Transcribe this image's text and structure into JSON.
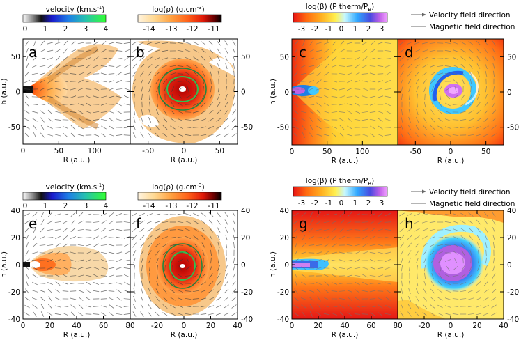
{
  "chart_data": [
    {
      "type": "heatmap",
      "panel_label": "a",
      "row": "top",
      "kind": "density",
      "xlabel": "R (a.u.)",
      "ylabel": "h (a.u.)",
      "xlim": [
        0,
        150
      ],
      "ylim": [
        -75,
        75
      ],
      "x_ticks": [
        "0",
        "50",
        "100"
      ],
      "y_ticks": [
        "50",
        "0",
        "-50"
      ]
    },
    {
      "type": "heatmap",
      "panel_label": "b",
      "row": "top",
      "kind": "density",
      "xlabel": "R (a.u.)",
      "ylabel": "",
      "xlim": [
        -75,
        75
      ],
      "ylim": [
        -75,
        75
      ],
      "x_ticks": [
        "-50",
        "0",
        "50"
      ],
      "y_ticks": [
        "50",
        "0",
        "-50"
      ]
    },
    {
      "type": "heatmap",
      "panel_label": "c",
      "row": "top",
      "kind": "beta",
      "xlabel": "R (a.u.)",
      "ylabel": "h (a.u.)",
      "xlim": [
        0,
        150
      ],
      "ylim": [
        -75,
        75
      ],
      "x_ticks": [
        "0",
        "50",
        "100"
      ],
      "y_ticks": [
        "50",
        "0",
        "-50"
      ]
    },
    {
      "type": "heatmap",
      "panel_label": "d",
      "row": "top",
      "kind": "beta",
      "xlabel": "R (a.u.)",
      "ylabel": "",
      "xlim": [
        -75,
        75
      ],
      "ylim": [
        -75,
        75
      ],
      "x_ticks": [
        "-50",
        "0",
        "50"
      ],
      "y_ticks": [
        "50",
        "0",
        "-50"
      ]
    },
    {
      "type": "heatmap",
      "panel_label": "e",
      "row": "bottom",
      "kind": "density",
      "xlabel": "R (a.u.)",
      "ylabel": "h (a.u.)",
      "xlim": [
        0,
        80
      ],
      "ylim": [
        -40,
        40
      ],
      "x_ticks": [
        "0",
        "20",
        "40",
        "60",
        "80"
      ],
      "y_ticks": [
        "40",
        "20",
        "0",
        "-20",
        "-40"
      ]
    },
    {
      "type": "heatmap",
      "panel_label": "f",
      "row": "bottom",
      "kind": "density",
      "xlabel": "R (a.u.)",
      "ylabel": "",
      "xlim": [
        -40,
        40
      ],
      "ylim": [
        -40,
        40
      ],
      "x_ticks": [
        "-20",
        "0",
        "20",
        "40"
      ],
      "y_ticks": [
        "40",
        "20",
        "0",
        "-20",
        "-40"
      ]
    },
    {
      "type": "heatmap",
      "panel_label": "g",
      "row": "bottom",
      "kind": "beta",
      "xlabel": "R (a.u.)",
      "ylabel": "h (a.u.)",
      "xlim": [
        0,
        80
      ],
      "ylim": [
        -40,
        40
      ],
      "x_ticks": [
        "0",
        "20",
        "40",
        "60",
        "80"
      ],
      "y_ticks": [
        "40",
        "20",
        "0",
        "-20",
        "-40"
      ]
    },
    {
      "type": "heatmap",
      "panel_label": "h",
      "row": "bottom",
      "kind": "beta",
      "xlabel": "R (a.u.)",
      "ylabel": "",
      "xlim": [
        -40,
        40
      ],
      "ylim": [
        -40,
        40
      ],
      "x_ticks": [
        "-20",
        "0",
        "20",
        "40"
      ],
      "y_ticks": [
        "40",
        "20",
        "0",
        "-20",
        "-40"
      ]
    }
  ],
  "colorbars": {
    "velocity": {
      "title_pre": "velocity (km.s",
      "title_sup": "-1",
      "title_post": ")",
      "ticks": [
        "0",
        "1",
        "2",
        "3",
        "4"
      ],
      "colors": [
        "#ffffff",
        "#888888",
        "#000000",
        "#1a1acc",
        "#1e7fe6",
        "#27c0b0",
        "#2ee080",
        "#33ff33"
      ]
    },
    "density": {
      "title_pre": "log(ρ) (g.cm",
      "title_sup": "-3",
      "title_post": ")",
      "ticks": [
        "-14",
        "-13",
        "-12",
        "-11"
      ],
      "colors": [
        "#fff4e0",
        "#ffe0a0",
        "#ffb050",
        "#ff8020",
        "#ff4010",
        "#d01008",
        "#600000",
        "#000000"
      ]
    },
    "beta": {
      "title_pre": "log(β) (P therm/P",
      "title_sub": "B",
      "title_post": ")",
      "ticks": [
        "-3",
        "-2",
        "-1",
        "0",
        "1",
        "2",
        "3"
      ],
      "colors": [
        "#e81414",
        "#ff6a10",
        "#ffb020",
        "#fff050",
        "#ffffc0",
        "#9fefff",
        "#30a8ff",
        "#4a4ae0",
        "#c060e8",
        "#f0a0ff"
      ]
    }
  },
  "legend": {
    "velocity": "Velocity field direction",
    "magnetic": "Magnetic field direction",
    "velocity_color": "#666666",
    "magnetic_color": "#888888"
  }
}
